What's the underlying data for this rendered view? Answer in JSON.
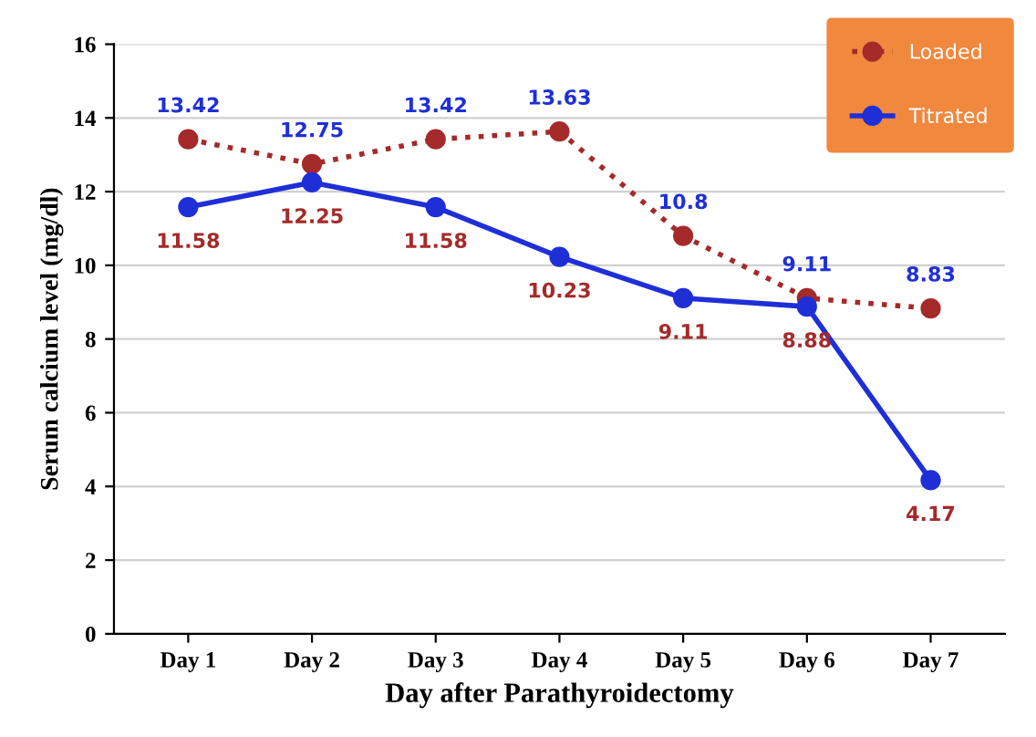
{
  "chart_data": {
    "type": "line",
    "xlabel": "Day after Parathyroidectomy",
    "ylabel": "Serum calcium level (mg/dl)",
    "categories": [
      "Day 1",
      "Day 2",
      "Day 3",
      "Day 4",
      "Day 5",
      "Day 6",
      "Day 7"
    ],
    "series": [
      {
        "name": "Loaded",
        "color": "#a52a2a",
        "values": [
          13.42,
          12.75,
          13.42,
          13.63,
          10.8,
          9.11,
          8.83
        ],
        "line_style": "dotted"
      },
      {
        "name": "Titrated",
        "color": "#1f2fd8",
        "values": [
          11.58,
          12.25,
          11.58,
          10.23,
          9.11,
          8.88,
          4.17
        ],
        "line_style": "solid"
      }
    ],
    "ylim": [
      0,
      16
    ],
    "yticks": [
      0,
      2,
      4,
      6,
      8,
      10,
      12,
      14,
      16
    ],
    "grid": "y",
    "legend": "top right",
    "marker": "circle",
    "data_labels": true
  }
}
